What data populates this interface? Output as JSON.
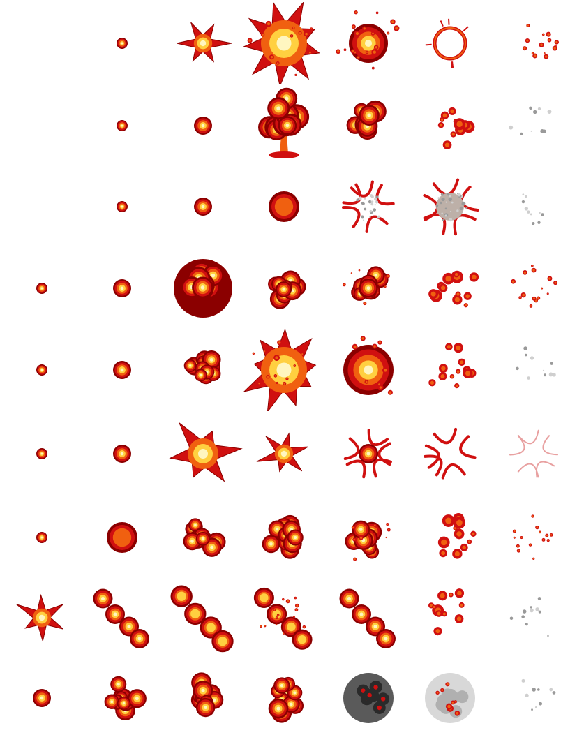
{
  "sprite_sheet": {
    "columns": 7,
    "rows": [
      {
        "name": "star-burst-explosion",
        "frames": [
          "empty",
          "spark",
          "star",
          "flash",
          "dissipate",
          "ring",
          "embers-fade"
        ]
      },
      {
        "name": "mushroom-cloud-explosion",
        "frames": [
          "empty",
          "spark",
          "puff",
          "mushroom",
          "cloud-fade",
          "scatter",
          "smoke-fade"
        ]
      },
      {
        "name": "shrapnel-explosion",
        "frames": [
          "empty",
          "spark",
          "puff",
          "core",
          "debris",
          "debris-smoke",
          "smoke-fade"
        ]
      },
      {
        "name": "cluster-explosion",
        "frames": [
          "spark",
          "puff",
          "cluster-dark",
          "cluster",
          "cluster-break",
          "scatter",
          "embers-fade"
        ]
      },
      {
        "name": "fireball-explosion",
        "frames": [
          "spark",
          "puff",
          "fireball",
          "flash",
          "flash-blur",
          "scatter",
          "smoke-fade"
        ]
      },
      {
        "name": "star-flare-explosion",
        "frames": [
          "spark",
          "puff",
          "star-flash",
          "star",
          "flare-break",
          "flare-scatter",
          "flare-fade"
        ]
      },
      {
        "name": "big-cluster-explosion",
        "frames": [
          "spark",
          "core",
          "cluster",
          "cluster",
          "cluster-break",
          "scatter",
          "embers-fade"
        ]
      },
      {
        "name": "diagonal-blast-explosion",
        "frames": [
          "star",
          "diagonal",
          "diagonal-blur",
          "diagonal-scatter",
          "diagonal",
          "scatter",
          "smoke-fade"
        ]
      },
      {
        "name": "smoke-explosion",
        "frames": [
          "puff",
          "cluster",
          "cluster",
          "cluster",
          "smoke-dark",
          "smoke-grey",
          "smoke-fade"
        ]
      }
    ],
    "palette": {
      "dark_red": "#8b0000",
      "red": "#d01010",
      "orange": "#f06010",
      "yellow": "#ffd040",
      "pale": "#fff6c0",
      "smoke_dark": "#2a2a2a",
      "smoke_grey": "#9a9a9a"
    }
  }
}
